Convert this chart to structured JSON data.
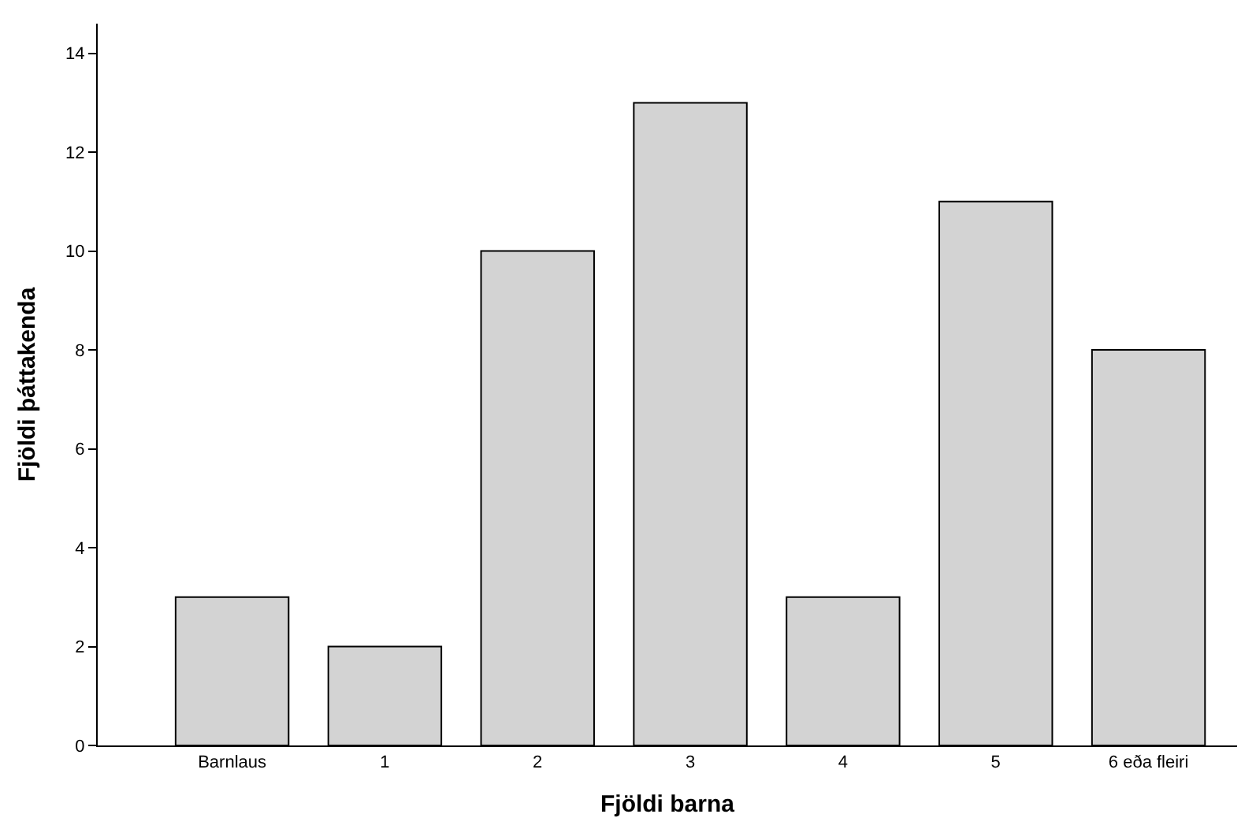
{
  "chart_data": {
    "type": "bar",
    "xlabel": "Fjöldi barna",
    "ylabel": "Fjöldi þáttakenda",
    "categories": [
      "Barnlaus",
      "1",
      "2",
      "3",
      "4",
      "5",
      "6 eða fleiri"
    ],
    "values": [
      3,
      2,
      10,
      13,
      3,
      11,
      8
    ],
    "color": "#d3d3d3",
    "ylim": [
      0,
      14.6
    ],
    "yticks": [
      0,
      2,
      4,
      6,
      8,
      10,
      12,
      14
    ]
  }
}
